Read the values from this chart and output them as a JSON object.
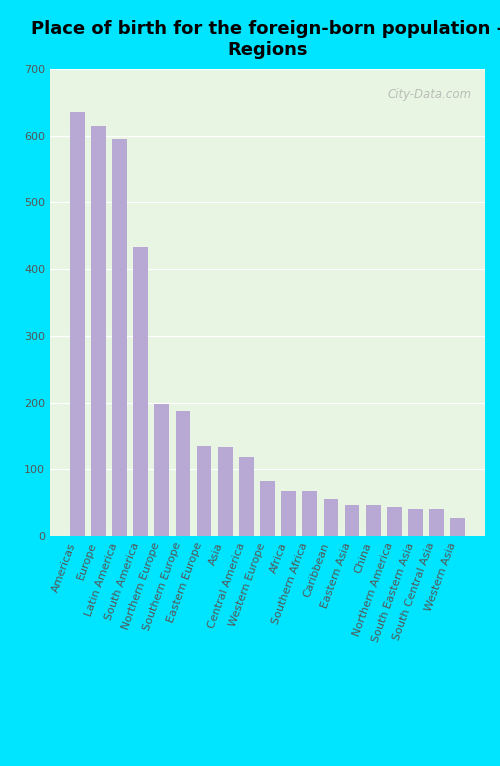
{
  "title": "Place of birth for the foreign-born population -\nRegions",
  "categories": [
    "Americas",
    "Europe",
    "Latin America",
    "South America",
    "Northern Europe",
    "Southern Europe",
    "Eastern Europe",
    "Asia",
    "Central America",
    "Western Europe",
    "Africa",
    "Southern Africa",
    "Caribbean",
    "Eastern Asia",
    "China",
    "Northern America",
    "South Eastern Asia",
    "South Central Asia",
    "Western Asia"
  ],
  "values": [
    635,
    615,
    595,
    433,
    198,
    188,
    135,
    133,
    118,
    83,
    68,
    68,
    55,
    47,
    47,
    44,
    40,
    40,
    27
  ],
  "bar_color": "#b8a9d4",
  "background_color_plot": "#e8f5e2",
  "background_color_fig": "#00e5ff",
  "title_fontsize": 13,
  "tick_fontsize": 8,
  "ylim": [
    0,
    700
  ],
  "yticks": [
    0,
    100,
    200,
    300,
    400,
    500,
    600,
    700
  ],
  "watermark": "City-Data.com"
}
